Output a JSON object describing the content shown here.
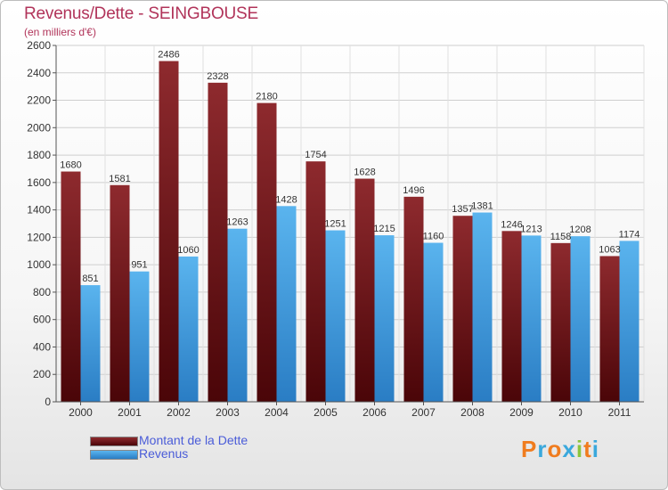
{
  "title": "Revenus/Dette - SEINGBOUSE",
  "subtitle": "(en milliers d'€)",
  "logo": {
    "letters": [
      "P",
      "r",
      "o",
      "x",
      "i",
      "t",
      "i"
    ],
    "colors": [
      "#f07c1e",
      "#3aa8dc",
      "#f07c1e",
      "#3aa8dc",
      "#8bc53f",
      "#f07c1e",
      "#3aa8dc"
    ]
  },
  "chart_data": {
    "type": "bar",
    "categories": [
      "2000",
      "2001",
      "2002",
      "2003",
      "2004",
      "2005",
      "2006",
      "2007",
      "2008",
      "2009",
      "2010",
      "2011"
    ],
    "series": [
      {
        "name": "Montant de la Dette",
        "color": "#7a1a1e",
        "values": [
          1680,
          1581,
          2486,
          2328,
          2180,
          1754,
          1628,
          1496,
          1357,
          1246,
          1158,
          1063
        ],
        "labels": [
          "1680",
          "1581",
          "2486",
          "2328",
          "2180",
          "1754",
          "1628",
          "1496",
          "1357",
          "1246",
          "1158",
          "1063"
        ]
      },
      {
        "name": "Revenus",
        "color": "#3d9ee0",
        "values": [
          851,
          951,
          1060,
          1263,
          1428,
          1251,
          1215,
          1160,
          1381,
          1213,
          1208,
          1174
        ],
        "labels": [
          "851",
          "951",
          "1060",
          "1263",
          "1428",
          "1251",
          "1215",
          "1160",
          "1381",
          "1213",
          "1208",
          "1174"
        ]
      }
    ],
    "ylim": [
      0,
      2600
    ],
    "yticks": [
      0,
      200,
      400,
      600,
      800,
      1000,
      1200,
      1400,
      1600,
      1800,
      2000,
      2200,
      2400,
      2600
    ],
    "grid": true,
    "legend": "bottom-left"
  }
}
